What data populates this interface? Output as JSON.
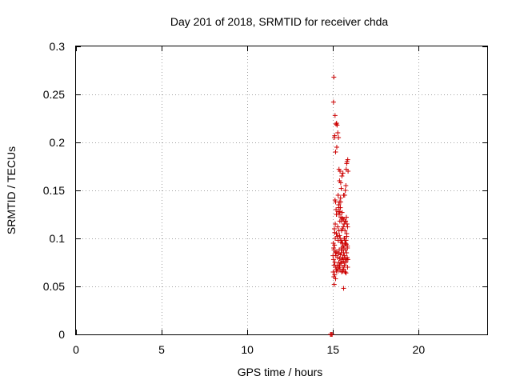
{
  "chart_data": {
    "type": "scatter",
    "title": "Day 201 of 2018, SRMTID for receiver chda",
    "xlabel": "GPS time / hours",
    "ylabel": "SRMTID / TECUs",
    "xlim": [
      0,
      24
    ],
    "ylim": [
      0,
      0.3
    ],
    "xticks": [
      0,
      5,
      10,
      15,
      20
    ],
    "yticks": [
      0,
      0.05,
      0.1,
      0.15,
      0.2,
      0.25,
      0.3
    ],
    "xtick_labels": [
      "0",
      "5",
      "10",
      "15",
      "20"
    ],
    "ytick_labels": [
      "0",
      "0.05",
      "0.1",
      "0.15",
      "0.2",
      "0.25",
      "0.3"
    ],
    "grid": true,
    "legend": "none",
    "marker": "plus",
    "color": "#cc0000",
    "series": [
      {
        "x": [
          15.05,
          15.03,
          15.12,
          15.18,
          15.21,
          15.24,
          15.08,
          15.1,
          15.28,
          15.22,
          15.15,
          15.32,
          15.35,
          15.41,
          15.38,
          15.45,
          15.48,
          15.52,
          15.58,
          15.62,
          15.68,
          15.72,
          15.75,
          15.77,
          15.8,
          15.82,
          15.86,
          15.88,
          15.12,
          15.15,
          15.18,
          15.3,
          15.33,
          15.36,
          15.4,
          15.43,
          15.46,
          15.5,
          15.55,
          15.6,
          15.65,
          15.7,
          15.74,
          15.78,
          15.82,
          15.85,
          15.08,
          15.1,
          15.13,
          15.2,
          15.25,
          15.3,
          15.35,
          15.38,
          15.42,
          15.46,
          15.5,
          15.55,
          15.6,
          15.64,
          15.68,
          15.72,
          15.76,
          15.8,
          15.84,
          15.02,
          15.04,
          15.06,
          15.09,
          15.14,
          15.17,
          15.22,
          15.27,
          15.31,
          15.36,
          15.39,
          15.44,
          15.48,
          15.53,
          15.57,
          15.61,
          15.66,
          15.7,
          15.74,
          15.79,
          15.83,
          15.87,
          15.0,
          15.03,
          15.06,
          15.11,
          15.16,
          15.19,
          15.24,
          15.29,
          15.34,
          15.37,
          15.41,
          15.47,
          15.51,
          15.56,
          15.59,
          15.63,
          15.67,
          15.71,
          15.76,
          15.81,
          15.85,
          15.01,
          15.05,
          15.1,
          15.15,
          15.2,
          15.26,
          15.33,
          15.39,
          15.45,
          15.49,
          15.54,
          15.58,
          15.62,
          15.69,
          15.73,
          15.78,
          15.84,
          15.07,
          15.13,
          15.21,
          15.28,
          15.37,
          15.44,
          15.53,
          15.61,
          15.7,
          15.8,
          15.62,
          15.5,
          15.4,
          15.3,
          15.2,
          15.35,
          15.45,
          15.55,
          15.65
        ],
        "y": [
          0.268,
          0.242,
          0.228,
          0.219,
          0.22,
          0.218,
          0.205,
          0.207,
          0.21,
          0.195,
          0.19,
          0.205,
          0.172,
          0.17,
          0.16,
          0.158,
          0.152,
          0.165,
          0.168,
          0.145,
          0.145,
          0.15,
          0.155,
          0.172,
          0.178,
          0.18,
          0.182,
          0.17,
          0.14,
          0.138,
          0.13,
          0.145,
          0.135,
          0.125,
          0.128,
          0.132,
          0.122,
          0.118,
          0.121,
          0.112,
          0.115,
          0.108,
          0.118,
          0.122,
          0.115,
          0.112,
          0.11,
          0.106,
          0.1,
          0.105,
          0.102,
          0.098,
          0.108,
          0.103,
          0.1,
          0.096,
          0.098,
          0.095,
          0.092,
          0.09,
          0.1,
          0.095,
          0.098,
          0.102,
          0.092,
          0.095,
          0.09,
          0.088,
          0.093,
          0.085,
          0.082,
          0.086,
          0.08,
          0.084,
          0.088,
          0.079,
          0.083,
          0.085,
          0.078,
          0.08,
          0.076,
          0.082,
          0.079,
          0.075,
          0.085,
          0.08,
          0.078,
          0.082,
          0.078,
          0.072,
          0.075,
          0.07,
          0.068,
          0.072,
          0.066,
          0.075,
          0.07,
          0.068,
          0.074,
          0.065,
          0.066,
          0.07,
          0.068,
          0.072,
          0.065,
          0.064,
          0.078,
          0.07,
          0.065,
          0.06,
          0.062,
          0.058,
          0.066,
          0.068,
          0.07,
          0.072,
          0.075,
          0.09,
          0.088,
          0.092,
          0.085,
          0.095,
          0.088,
          0.094,
          0.09,
          0.052,
          0.115,
          0.125,
          0.112,
          0.138,
          0.142,
          0.127,
          0.12,
          0.118,
          0.105,
          0.048,
          0.108,
          0.118,
          0.128,
          0.125,
          0.132,
          0.138,
          0.11,
          0.1
        ]
      },
      {
        "x": [
          14.85,
          14.9,
          14.95
        ],
        "y": [
          0.0,
          0.0,
          0.0
        ]
      }
    ]
  }
}
